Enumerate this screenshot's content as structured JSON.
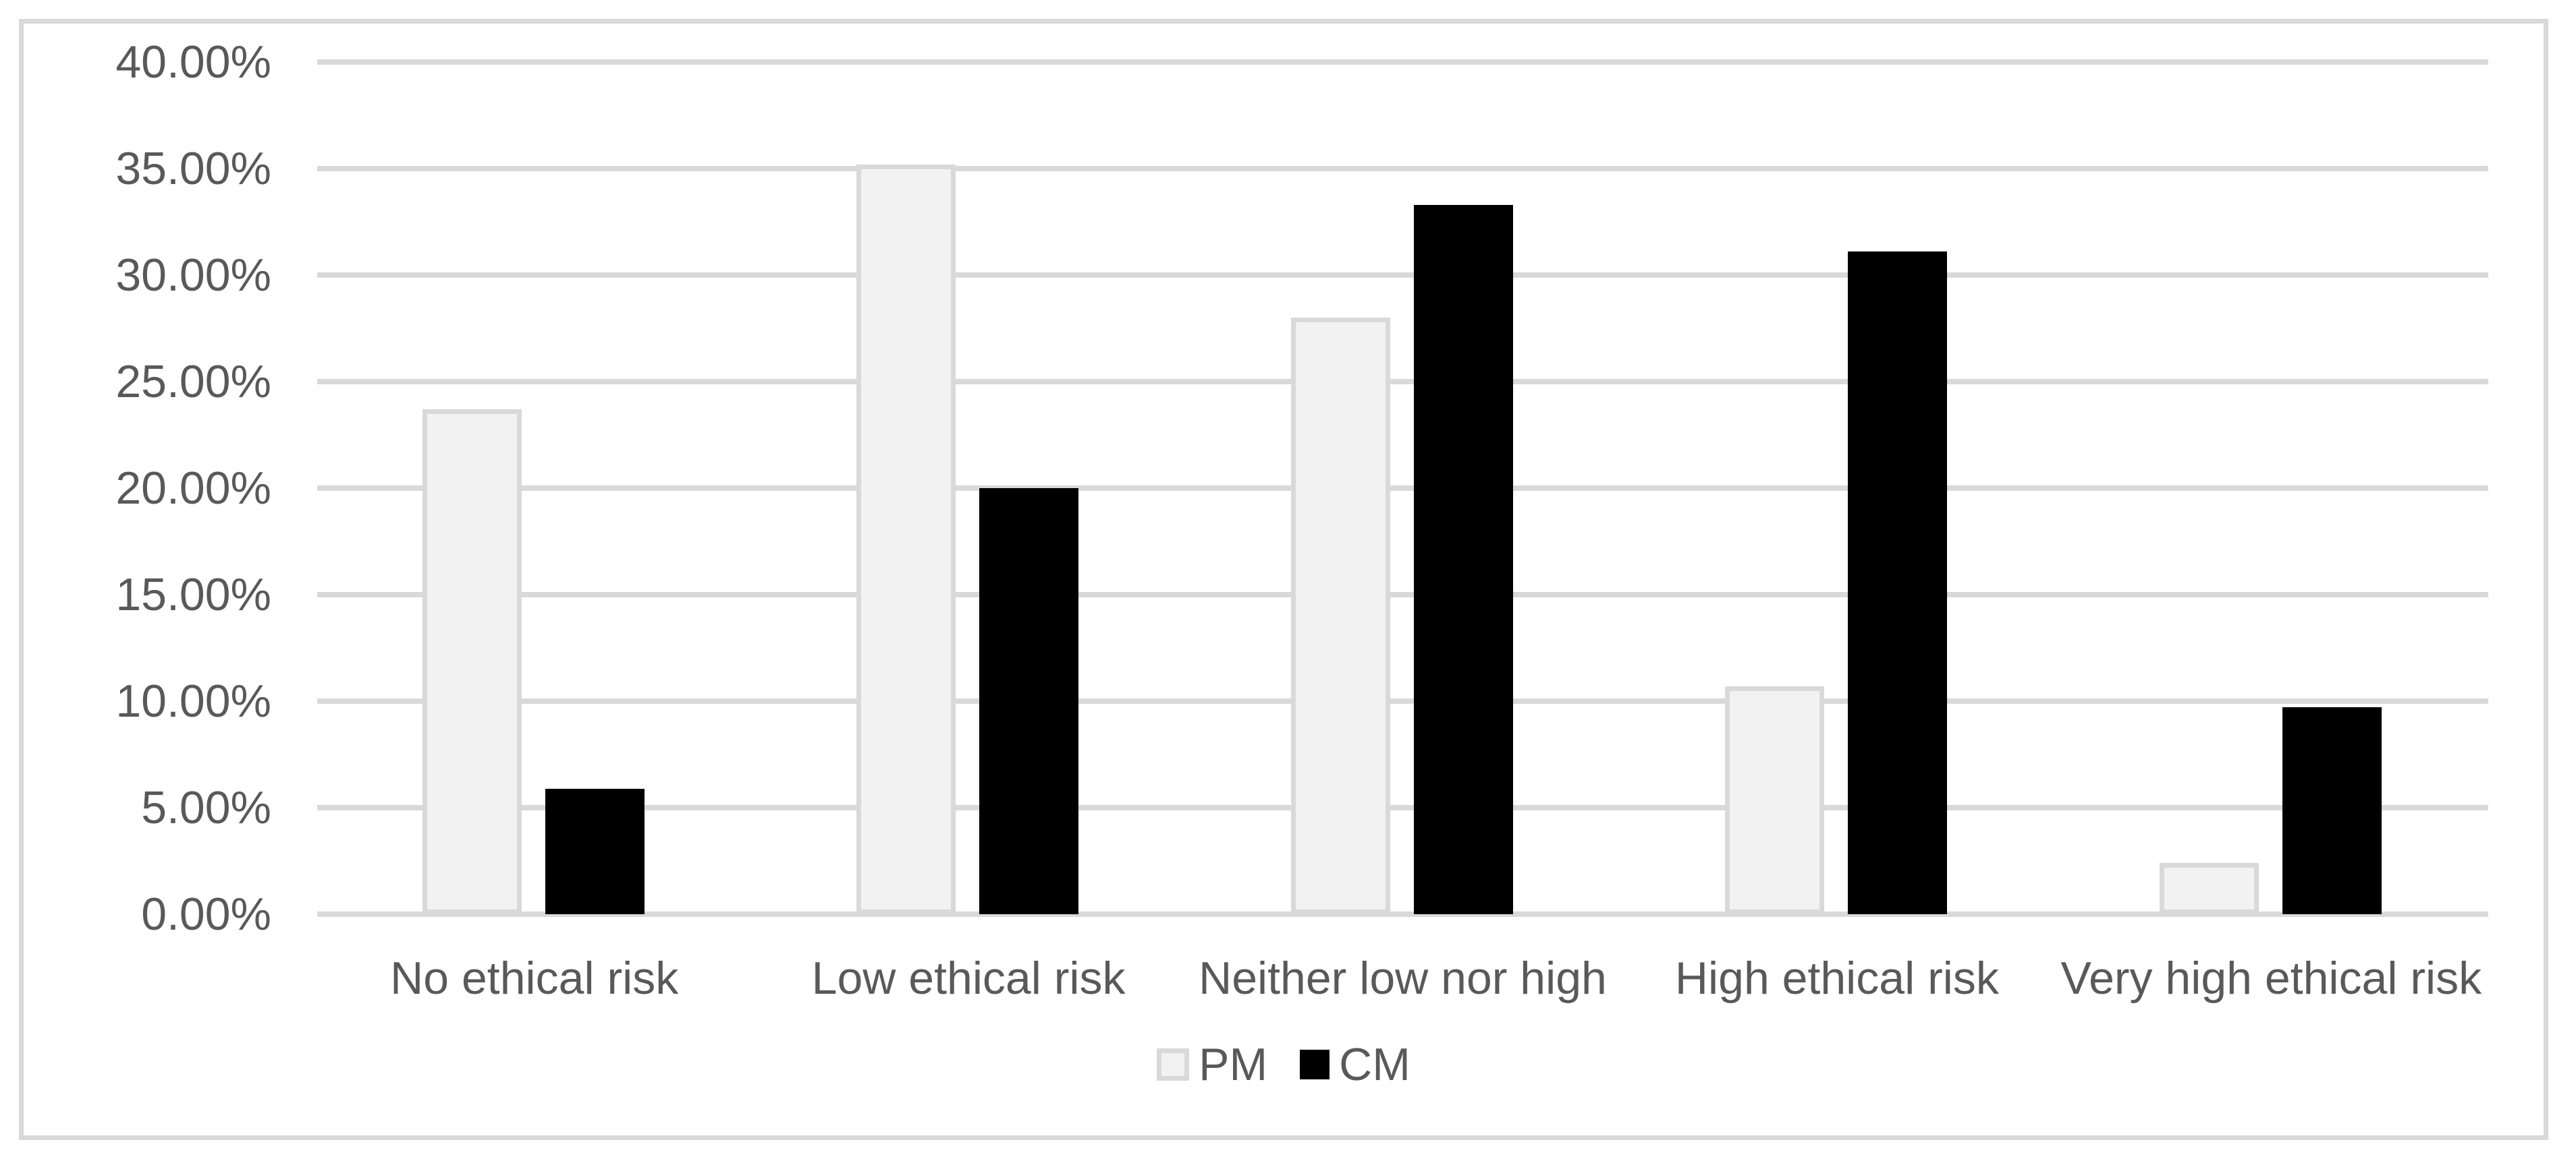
{
  "chart_data": {
    "type": "bar",
    "title": "",
    "xlabel": "",
    "ylabel": "",
    "categories": [
      "No ethical risk",
      "Low ethical risk",
      "Neither low nor high",
      "High ethical risk",
      "Very high ethical risk"
    ],
    "series": [
      {
        "name": "PM",
        "fill": "#f2f2f2",
        "border": "#d9d9d9",
        "values": [
          23.7,
          35.2,
          28.0,
          10.7,
          2.4
        ]
      },
      {
        "name": "CM",
        "fill": "#000000",
        "border": "#000000",
        "values": [
          5.9,
          20.0,
          33.3,
          31.1,
          9.7
        ]
      }
    ],
    "ylim": [
      0,
      40
    ],
    "ytick_step": 5,
    "ytick_labels": [
      "0.00%",
      "5.00%",
      "10.00%",
      "15.00%",
      "20.00%",
      "25.00%",
      "30.00%",
      "35.00%",
      "40.00%"
    ],
    "grid": true,
    "legend_position": "bottom-center",
    "value_unit": "percent"
  },
  "colors": {
    "gridline": "#d9d9d9",
    "frame_border": "#d9d9d9",
    "text": "#595959",
    "background": "#ffffff",
    "pm_fill": "#f2f2f2",
    "pm_border": "#d9d9d9",
    "cm_fill": "#000000"
  }
}
